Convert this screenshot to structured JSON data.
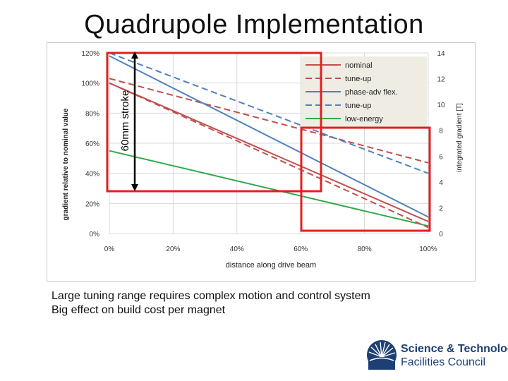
{
  "title": "Quadrupole Implementation",
  "body_lines": [
    "Large tuning range requires complex motion and control system",
    "Big effect on build cost per magnet"
  ],
  "logo": {
    "line1": "Science & Technology",
    "line2": "Facilities Council",
    "icon": "sunburst-logo-icon"
  },
  "annotation": {
    "stroke_label": "60mm stroke"
  },
  "colors": {
    "nominal": "#c0504d",
    "phase_adv": "#4f81bd",
    "low_energy": "#2eaa4a",
    "highlight": "#e02020",
    "legend_bg": "#eeece1"
  },
  "chart_data": {
    "type": "line",
    "title": "",
    "xlabel": "distance along drive beam",
    "ylabel": "gradient relative to nominal value",
    "y2label": "integrated gradient [T]",
    "xlim": [
      0,
      100
    ],
    "ylim": [
      0,
      120
    ],
    "y2lim": [
      0,
      14
    ],
    "x_ticks": [
      "0%",
      "20%",
      "40%",
      "60%",
      "80%",
      "100%"
    ],
    "y_ticks": [
      "0%",
      "20%",
      "40%",
      "60%",
      "80%",
      "100%",
      "120%"
    ],
    "y2_ticks": [
      "0",
      "2",
      "4",
      "6",
      "8",
      "10",
      "12",
      "14"
    ],
    "legend_position": "top-right",
    "grid": true,
    "series": [
      {
        "name": "nominal",
        "color": "#c0504d",
        "style": "solid",
        "x": [
          0,
          100
        ],
        "y": [
          100,
          8
        ]
      },
      {
        "name": "tune-up",
        "color": "#c0504d",
        "style": "dashed",
        "x": [
          0,
          100
        ],
        "y": [
          103,
          47
        ]
      },
      {
        "name": "phase-adv flex.",
        "color": "#4f81bd",
        "style": "solid",
        "x": [
          0,
          100
        ],
        "y": [
          118,
          11
        ]
      },
      {
        "name": "tune-up",
        "color": "#4f81bd",
        "style": "dashed",
        "x": [
          0,
          100
        ],
        "y": [
          120,
          40
        ]
      },
      {
        "name": "low-energy",
        "color": "#2eaa4a",
        "style": "solid",
        "x": [
          0,
          100
        ],
        "y": [
          55,
          5
        ]
      },
      {
        "name": "",
        "color": "#c0504d",
        "style": "dashed",
        "x": [
          0,
          100
        ],
        "y": [
          100,
          4
        ]
      }
    ]
  }
}
